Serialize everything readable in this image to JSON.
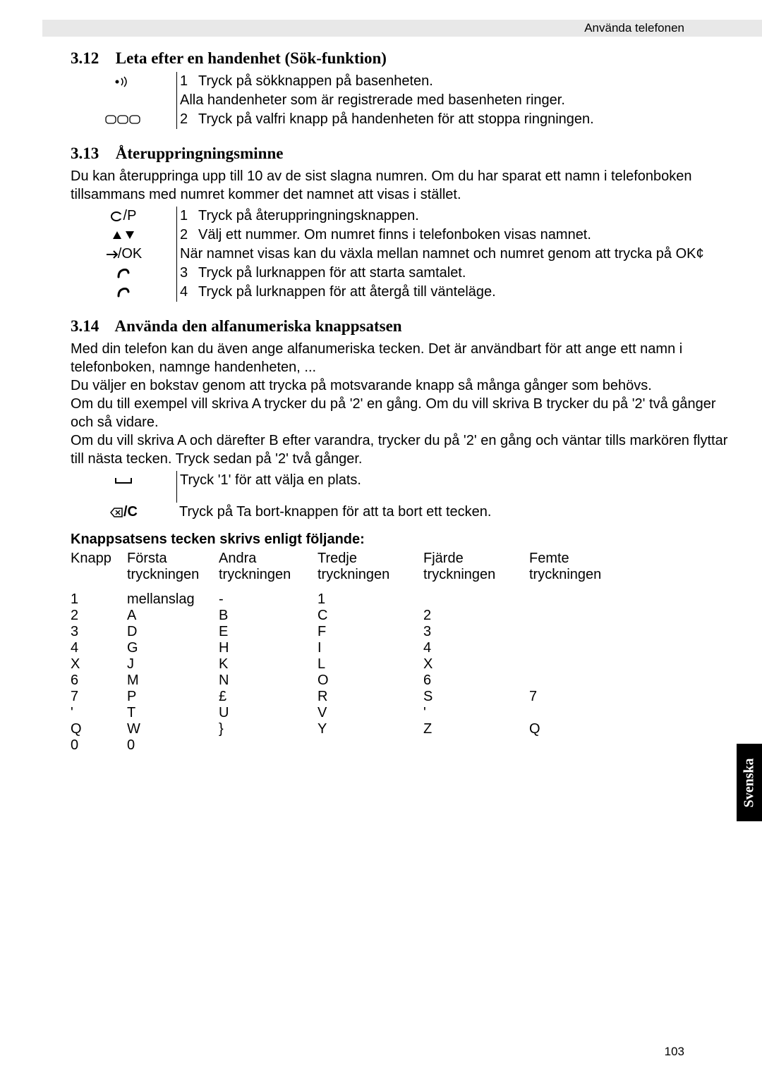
{
  "header": {
    "right": "Använda telefonen"
  },
  "sections": {
    "s312": {
      "num": "3.12",
      "title": "Leta efter en handenhet (Sök-funktion)"
    },
    "s313": {
      "num": "3.13",
      "title": "Återuppringningsminne"
    },
    "s314": {
      "num": "3.14",
      "title": "Använda den alfanumeriska knappsatsen"
    }
  },
  "s312_rows": [
    {
      "icon": "paging",
      "n": "1",
      "text": "Tryck på sökknappen på basenheten."
    },
    {
      "icon": "",
      "n": "",
      "text": "Alla handenheter som är registrerade med basenheten ringer."
    },
    {
      "icon": "keys",
      "n": "2",
      "text": "Tryck på valfri knapp på handenheten för att stoppa ringningen."
    }
  ],
  "s313_intro": "Du kan återuppringa upp till 10 av de sist slagna numren. Om du har sparat ett namn i telefonboken tillsammans med numret kommer det namnet att visas i stället.",
  "s313_rows": [
    {
      "icon": "redial",
      "n": "1",
      "text": "Tryck på återuppringningsknappen."
    },
    {
      "icon": "updown",
      "n": "2",
      "text": "Välj ett nummer. Om numret finns i telefonboken visas namnet."
    },
    {
      "icon": "ok",
      "n": "",
      "text": "När namnet visas kan du växla mellan namnet och numret genom att trycka på OK¢"
    },
    {
      "icon": "call",
      "n": "3",
      "text": "Tryck på lurknappen för att starta samtalet."
    },
    {
      "icon": "call",
      "n": "4",
      "text": "Tryck på lurknappen för att återgå till vänteläge."
    }
  ],
  "s314_paras": [
    "Med din telefon kan du även ange alfanumeriska tecken. Det är användbart för att ange ett namn i telefonboken, namnge handenheten, ...",
    "Du väljer en bokstav genom att trycka på motsvarande knapp så många gånger som behövs.",
    "Om du till exempel vill skriva A trycker du på '2' en gång. Om du vill skriva B trycker du på '2' två gånger och så vidare.",
    "Om du vill skriva A och därefter B efter varandra, trycker du på '2' en gång och väntar tills markören flyttar till nästa tecken. Tryck sedan på '2' två gånger."
  ],
  "s314_rows": [
    {
      "icon": "space",
      "text": "Tryck '1' för att välja en plats."
    },
    {
      "icon": "delete",
      "text": "Tryck på Ta bort-knappen för att ta bort ett tecken."
    }
  ],
  "char_table": {
    "title": "Knappsatsens tecken skrivs enligt följande:",
    "headers_top": [
      "Knapp",
      "Första",
      "Andra",
      "Tredje",
      "Fjärde",
      "Femte"
    ],
    "headers_bottom": [
      "",
      "tryckningen",
      "tryckningen",
      "tryckningen",
      "tryckningen",
      "tryckningen"
    ],
    "rows": [
      [
        "1",
        "mellanslag",
        "-",
        "1",
        "",
        ""
      ],
      [
        "2",
        "A",
        "B",
        "C",
        "2",
        ""
      ],
      [
        "3",
        "D",
        "E",
        "F",
        "3",
        ""
      ],
      [
        "4",
        "G",
        "H",
        "I",
        "4",
        ""
      ],
      [
        "X",
        "J",
        "K",
        "L",
        "X",
        ""
      ],
      [
        "6",
        "M",
        "N",
        "O",
        "6",
        ""
      ],
      [
        "7",
        "P",
        "£",
        "R",
        "S",
        "7"
      ],
      [
        "'",
        "T",
        "U",
        "V",
        "'",
        ""
      ],
      [
        "Q",
        "W",
        "}",
        "Y",
        "Z",
        "Q"
      ],
      [
        "0",
        "0",
        "",
        "",
        "",
        ""
      ]
    ]
  },
  "side_tab": "Svenska",
  "page_num": "103",
  "icons": {
    "redial_label": "/P",
    "ok_label": "/OK",
    "delete_label": "/C"
  }
}
